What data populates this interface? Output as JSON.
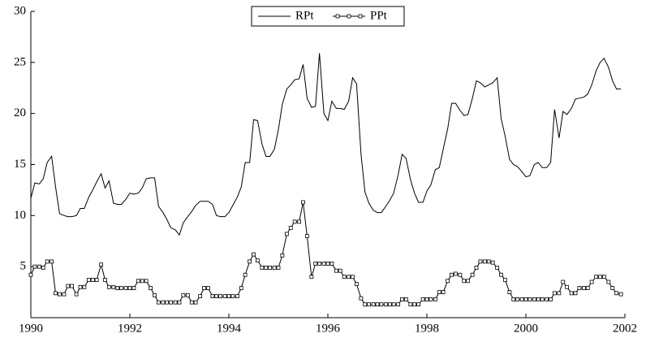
{
  "chart_data": {
    "type": "line",
    "x": [
      1990,
      1990.08,
      1990.17,
      1990.25,
      1990.33,
      1990.42,
      1990.5,
      1990.58,
      1990.67,
      1990.75,
      1990.83,
      1990.92,
      1991,
      1991.08,
      1991.17,
      1991.25,
      1991.33,
      1991.42,
      1991.5,
      1991.58,
      1991.67,
      1991.75,
      1991.83,
      1991.92,
      1992,
      1992.08,
      1992.17,
      1992.25,
      1992.33,
      1992.42,
      1992.5,
      1992.58,
      1992.67,
      1992.75,
      1992.83,
      1992.92,
      1993,
      1993.08,
      1993.17,
      1993.25,
      1993.33,
      1993.42,
      1993.5,
      1993.58,
      1993.67,
      1993.75,
      1993.83,
      1993.92,
      1994,
      1994.08,
      1994.17,
      1994.25,
      1994.33,
      1994.42,
      1994.5,
      1994.58,
      1994.67,
      1994.75,
      1994.83,
      1994.92,
      1995,
      1995.08,
      1995.17,
      1995.25,
      1995.33,
      1995.42,
      1995.5,
      1995.58,
      1995.67,
      1995.75,
      1995.83,
      1995.92,
      1996,
      1996.08,
      1996.17,
      1996.25,
      1996.33,
      1996.42,
      1996.5,
      1996.58,
      1996.67,
      1996.75,
      1996.83,
      1996.92,
      1997,
      1997.08,
      1997.17,
      1997.25,
      1997.33,
      1997.42,
      1997.5,
      1997.58,
      1997.67,
      1997.75,
      1997.83,
      1997.92,
      1998,
      1998.08,
      1998.17,
      1998.25,
      1998.33,
      1998.42,
      1998.5,
      1998.58,
      1998.67,
      1998.75,
      1998.83,
      1998.92,
      1999,
      1999.08,
      1999.17,
      1999.25,
      1999.33,
      1999.42,
      1999.5,
      1999.58,
      1999.67,
      1999.75,
      1999.83,
      1999.92,
      2000,
      2000.08,
      2000.17,
      2000.25,
      2000.33,
      2000.42,
      2000.5,
      2000.58,
      2000.67,
      2000.75,
      2000.83,
      2000.92,
      2001,
      2001.08,
      2001.17,
      2001.25,
      2001.33,
      2001.42,
      2001.5,
      2001.58,
      2001.67,
      2001.75,
      2001.83,
      2001.92
    ],
    "series": [
      {
        "name": "RPt",
        "color": "#000000",
        "values": [
          11.7,
          13.2,
          13.1,
          13.6,
          15.2,
          15.8,
          12.8,
          10.2,
          10.0,
          9.9,
          9.9,
          10.0,
          10.7,
          10.7,
          11.8,
          12.5,
          13.3,
          14.1,
          12.7,
          13.4,
          11.2,
          11.1,
          11.1,
          11.6,
          12.2,
          12.1,
          12.2,
          12.7,
          13.6,
          13.7,
          13.7,
          10.9,
          10.3,
          9.6,
          8.8,
          8.6,
          8.1,
          9.3,
          9.9,
          10.4,
          11.0,
          11.4,
          11.4,
          11.4,
          11.1,
          10.0,
          9.9,
          9.9,
          10.3,
          11.0,
          11.8,
          12.8,
          15.2,
          15.2,
          19.4,
          19.3,
          17.0,
          15.8,
          15.8,
          16.5,
          18.4,
          20.9,
          22.4,
          22.8,
          23.3,
          23.4,
          24.8,
          21.5,
          20.6,
          20.7,
          25.9,
          20.0,
          19.3,
          21.2,
          20.5,
          20.5,
          20.4,
          21.2,
          23.5,
          22.9,
          16.0,
          12.3,
          11.2,
          10.5,
          10.3,
          10.3,
          10.9,
          11.5,
          12.2,
          14.0,
          16.0,
          15.6,
          13.5,
          12.2,
          11.3,
          11.3,
          12.4,
          13.0,
          14.5,
          14.7,
          16.5,
          18.5,
          21.0,
          21.0,
          20.3,
          19.8,
          19.9,
          21.5,
          23.2,
          23.0,
          22.6,
          22.8,
          23.0,
          23.5,
          19.5,
          17.8,
          15.5,
          15.0,
          14.8,
          14.3,
          13.8,
          13.9,
          15.0,
          15.2,
          14.7,
          14.7,
          15.2,
          20.4,
          17.6,
          20.2,
          19.9,
          20.5,
          21.4,
          21.5,
          21.6,
          21.9,
          22.8,
          24.2,
          25.0,
          25.4,
          24.5,
          23.2,
          22.4,
          22.4
        ]
      },
      {
        "name": "PPt",
        "color": "#000000",
        "marker": "square",
        "values": [
          4.2,
          5.0,
          5.0,
          4.9,
          5.5,
          5.5,
          2.4,
          2.3,
          2.3,
          3.1,
          3.1,
          2.3,
          3.0,
          3.0,
          3.7,
          3.7,
          3.7,
          5.2,
          3.7,
          3.0,
          3.0,
          2.9,
          2.9,
          2.9,
          2.9,
          2.9,
          3.6,
          3.6,
          3.6,
          2.9,
          2.2,
          1.5,
          1.5,
          1.5,
          1.5,
          1.5,
          1.5,
          2.2,
          2.2,
          1.5,
          1.5,
          2.1,
          2.9,
          2.9,
          2.1,
          2.1,
          2.1,
          2.1,
          2.1,
          2.1,
          2.1,
          2.9,
          4.2,
          5.5,
          6.2,
          5.6,
          4.9,
          4.9,
          4.9,
          4.9,
          4.9,
          6.1,
          8.2,
          8.8,
          9.4,
          9.4,
          11.3,
          8.0,
          4.0,
          5.3,
          5.3,
          5.3,
          5.3,
          5.3,
          4.6,
          4.6,
          4.0,
          4.0,
          4.0,
          3.3,
          1.9,
          1.3,
          1.3,
          1.3,
          1.3,
          1.3,
          1.3,
          1.3,
          1.3,
          1.3,
          1.8,
          1.8,
          1.3,
          1.3,
          1.3,
          1.8,
          1.8,
          1.8,
          1.8,
          2.5,
          2.5,
          3.6,
          4.2,
          4.3,
          4.2,
          3.6,
          3.6,
          4.2,
          4.9,
          5.5,
          5.5,
          5.5,
          5.4,
          4.9,
          4.2,
          3.7,
          2.5,
          1.8,
          1.8,
          1.8,
          1.8,
          1.8,
          1.8,
          1.8,
          1.8,
          1.8,
          1.8,
          2.4,
          2.4,
          3.5,
          3.0,
          2.4,
          2.4,
          2.9,
          2.9,
          2.9,
          3.5,
          4.0,
          4.0,
          4.0,
          3.5,
          2.9,
          2.4,
          2.3
        ]
      }
    ],
    "xlim": [
      1990,
      2002
    ],
    "xticks": [
      1990,
      1992,
      1994,
      1996,
      1998,
      2000,
      2002
    ],
    "ylim": [
      0,
      30
    ],
    "yticks": [
      5,
      10,
      15,
      20,
      25,
      30
    ],
    "legend": "top"
  }
}
